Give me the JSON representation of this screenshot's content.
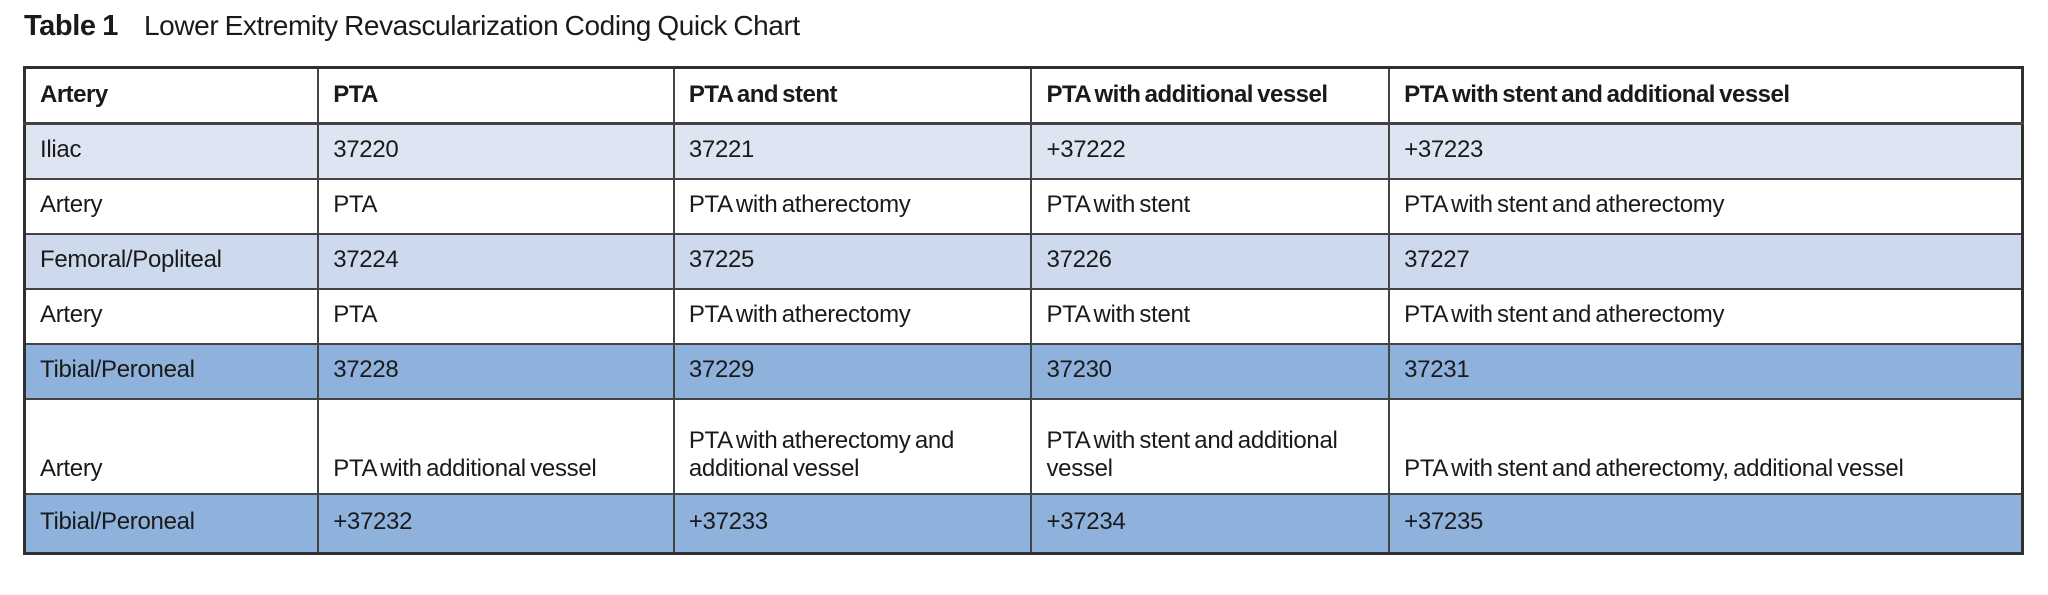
{
  "title": {
    "label": "Table 1",
    "text": "Lower Extremity Revascularization Coding Quick Chart"
  },
  "colors": {
    "row_white": "#ffffff",
    "row_light": "#dee5f2",
    "row_medium_light": "#cdd9ec",
    "row_medium": "#8fb2dd",
    "border_inner": "#444444",
    "border_outer": "#2f2f2f",
    "text": "#1a1a1a"
  },
  "table": {
    "columns": [
      "Artery",
      "PTA",
      "PTA and stent",
      "PTA with additional vessel",
      "PTA with stent and additional vessel"
    ],
    "rows": [
      {
        "shade": "light",
        "tall": false,
        "cells": [
          "Iliac",
          "37220",
          "37221",
          "+37222",
          "+37223"
        ]
      },
      {
        "shade": "white",
        "tall": false,
        "cells": [
          "Artery",
          "PTA",
          "PTA with atherectomy",
          "PTA with stent",
          "PTA with stent and atherectomy"
        ]
      },
      {
        "shade": "medium-light",
        "tall": false,
        "cells": [
          "Femoral/Popliteal",
          "37224",
          "37225",
          "37226",
          "37227"
        ]
      },
      {
        "shade": "white",
        "tall": false,
        "cells": [
          "Artery",
          "PTA",
          "PTA with atherectomy",
          "PTA with stent",
          "PTA with stent and atherectomy"
        ]
      },
      {
        "shade": "medium",
        "tall": false,
        "cells": [
          "Tibial/Peroneal",
          "37228",
          "37229",
          "37230",
          "37231"
        ]
      },
      {
        "shade": "white",
        "tall": true,
        "cells": [
          "Artery",
          "PTA with additional vessel",
          "PTA with atherectomy and additional vessel",
          "PTA with stent and additional vessel",
          "PTA with stent and atherectomy, additional vessel"
        ]
      },
      {
        "shade": "medium",
        "tall": false,
        "cells": [
          "Tibial/Peroneal",
          "+37232",
          "+37233",
          "+37234",
          "+37235"
        ]
      }
    ]
  }
}
